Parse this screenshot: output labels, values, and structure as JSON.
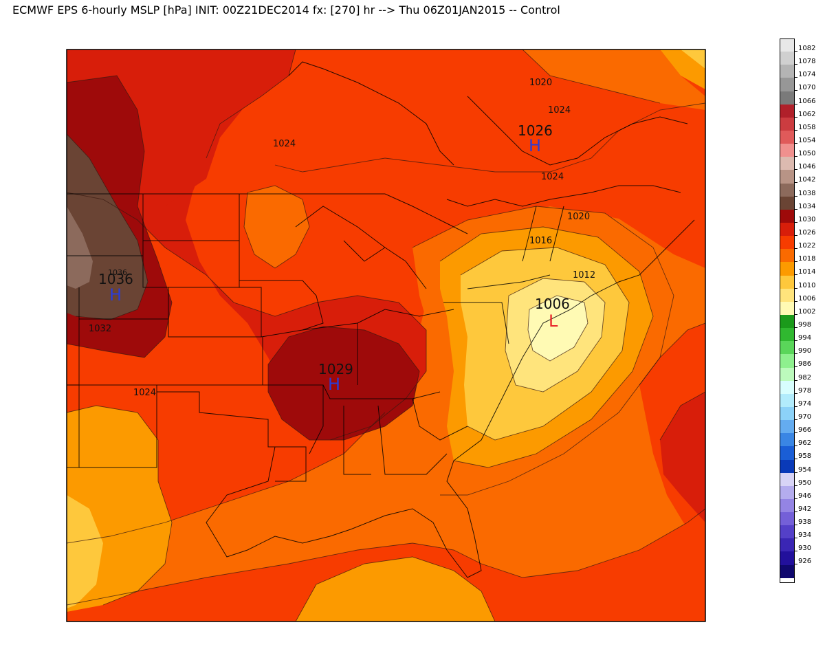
{
  "title": "ECMWF EPS 6-hourly MSLP [hPa] INIT: 00Z21DEC2014 fx: [270] hr --> Thu 06Z01JAN2015 -- Control",
  "legend": [
    {
      "label": "1082",
      "color": "#e8e8e8"
    },
    {
      "label": "1078",
      "color": "#d0d0d0"
    },
    {
      "label": "1074",
      "color": "#b4b4b4"
    },
    {
      "label": "1070",
      "color": "#979797"
    },
    {
      "label": "1066",
      "color": "#7a7a7a"
    },
    {
      "label": "1062",
      "color": "#b0202a"
    },
    {
      "label": "1058",
      "color": "#cc3c40"
    },
    {
      "label": "1054",
      "color": "#e05a5a"
    },
    {
      "label": "1050",
      "color": "#f0908e"
    },
    {
      "label": "1046",
      "color": "#dcbab0"
    },
    {
      "label": "1042",
      "color": "#b89486"
    },
    {
      "label": "1038",
      "color": "#8c6a5c"
    },
    {
      "label": "1034",
      "color": "#6a4434"
    },
    {
      "label": "1030",
      "color": "#9e0a0a"
    },
    {
      "label": "1026",
      "color": "#d81e0a"
    },
    {
      "label": "1022",
      "color": "#f73c00"
    },
    {
      "label": "1018",
      "color": "#fa6a00"
    },
    {
      "label": "1014",
      "color": "#fc9a00"
    },
    {
      "label": "1010",
      "color": "#fec83c"
    },
    {
      "label": "1006",
      "color": "#ffe47c"
    },
    {
      "label": "1002",
      "color": "#fffab4"
    },
    {
      "label": "998",
      "color": "#1b9a1b"
    },
    {
      "label": "994",
      "color": "#30b830"
    },
    {
      "label": "990",
      "color": "#5ad65a"
    },
    {
      "label": "986",
      "color": "#8ef08e"
    },
    {
      "label": "982",
      "color": "#bcfabc"
    },
    {
      "label": "978",
      "color": "#d8fefe"
    },
    {
      "label": "974",
      "color": "#b2ecfc"
    },
    {
      "label": "970",
      "color": "#8cd2f8"
    },
    {
      "label": "966",
      "color": "#64acf0"
    },
    {
      "label": "962",
      "color": "#3a86e4"
    },
    {
      "label": "958",
      "color": "#1a5ed6"
    },
    {
      "label": "954",
      "color": "#0a3ab8"
    },
    {
      "label": "950",
      "color": "#d8d4f6"
    },
    {
      "label": "946",
      "color": "#b4acee"
    },
    {
      "label": "942",
      "color": "#9484e4"
    },
    {
      "label": "938",
      "color": "#7460d8"
    },
    {
      "label": "934",
      "color": "#5440c8"
    },
    {
      "label": "930",
      "color": "#3a26b4"
    },
    {
      "label": "926",
      "color": "#22109c"
    },
    {
      "label": "",
      "color": "#10086e"
    }
  ],
  "contour_labels": [
    "1020",
    "1024",
    "1024",
    "1024",
    "1020",
    "1016",
    "1012",
    "1032",
    "1024",
    "1036"
  ],
  "centers": [
    {
      "value": "1026",
      "symbol": "H"
    },
    {
      "value": "1036",
      "symbol": "H"
    },
    {
      "value": "1029",
      "symbol": "H"
    },
    {
      "value": "1006",
      "symbol": "L"
    }
  ]
}
